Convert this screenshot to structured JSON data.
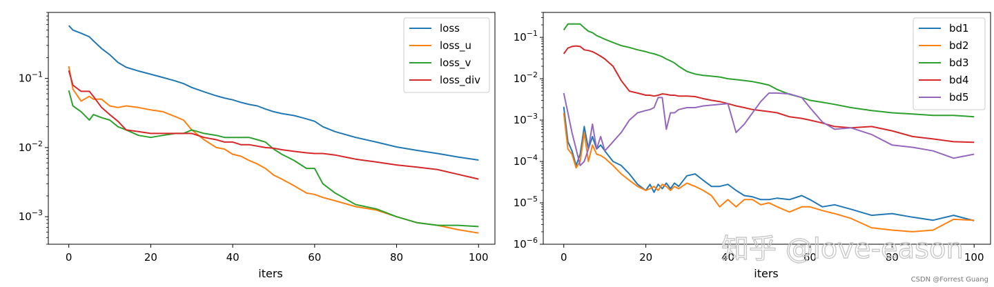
{
  "chart_data": [
    {
      "type": "line",
      "title": "",
      "xlabel": "iters",
      "ylabel": "",
      "yscale": "log",
      "xlim": [
        -5,
        104
      ],
      "ylim": [
        0.0004,
        0.9
      ],
      "x_ticks": [
        0,
        20,
        40,
        60,
        80,
        100
      ],
      "x_tick_labels": [
        "0",
        "20",
        "40",
        "60",
        "80",
        "100"
      ],
      "y_ticks": [
        0.001,
        0.01,
        0.1
      ],
      "y_tick_labels": [
        {
          "base": "10",
          "exp": "−3"
        },
        {
          "base": "10",
          "exp": "−2"
        },
        {
          "base": "10",
          "exp": "−1"
        }
      ],
      "legend_position": "top-right",
      "x": [
        0,
        1,
        3,
        5,
        6,
        8,
        10,
        12,
        14,
        17,
        20,
        23,
        26,
        28,
        30,
        33,
        36,
        38,
        40,
        42,
        44,
        46,
        48,
        50,
        52,
        55,
        58,
        60,
        62,
        65,
        70,
        75,
        80,
        85,
        90,
        95,
        100
      ],
      "series": [
        {
          "name": "loss",
          "color": "#1f77b4",
          "values": [
            0.58,
            0.5,
            0.45,
            0.4,
            0.35,
            0.27,
            0.22,
            0.17,
            0.145,
            0.128,
            0.115,
            0.103,
            0.092,
            0.084,
            0.074,
            0.064,
            0.056,
            0.052,
            0.049,
            0.045,
            0.042,
            0.04,
            0.036,
            0.033,
            0.031,
            0.029,
            0.026,
            0.024,
            0.02,
            0.017,
            0.014,
            0.012,
            0.0102,
            0.0091,
            0.0082,
            0.0073,
            0.0066
          ]
        },
        {
          "name": "loss_u",
          "color": "#ff7f0e",
          "values": [
            0.15,
            0.07,
            0.047,
            0.055,
            0.05,
            0.05,
            0.04,
            0.038,
            0.04,
            0.038,
            0.035,
            0.033,
            0.028,
            0.025,
            0.018,
            0.013,
            0.01,
            0.0095,
            0.008,
            0.0075,
            0.0065,
            0.0058,
            0.005,
            0.004,
            0.0035,
            0.0028,
            0.0022,
            0.0021,
            0.0019,
            0.0017,
            0.0014,
            0.00125,
            0.001,
            0.00082,
            0.00075,
            0.00065,
            0.00058
          ]
        },
        {
          "name": "loss_v",
          "color": "#2ca02c",
          "values": [
            0.067,
            0.04,
            0.033,
            0.025,
            0.03,
            0.027,
            0.025,
            0.02,
            0.018,
            0.015,
            0.014,
            0.015,
            0.016,
            0.016,
            0.018,
            0.016,
            0.015,
            0.014,
            0.014,
            0.014,
            0.014,
            0.013,
            0.012,
            0.0095,
            0.008,
            0.0065,
            0.005,
            0.005,
            0.003,
            0.0022,
            0.0015,
            0.0013,
            0.001,
            0.00082,
            0.00075,
            0.00075,
            0.00072
          ]
        },
        {
          "name": "loss_div",
          "color": "#d62728",
          "values": [
            0.13,
            0.08,
            0.065,
            0.065,
            0.055,
            0.038,
            0.03,
            0.024,
            0.018,
            0.017,
            0.016,
            0.016,
            0.016,
            0.016,
            0.016,
            0.014,
            0.013,
            0.012,
            0.012,
            0.011,
            0.011,
            0.0105,
            0.01,
            0.0098,
            0.0093,
            0.0088,
            0.0084,
            0.0082,
            0.0082,
            0.0078,
            0.0068,
            0.0062,
            0.0056,
            0.0052,
            0.0048,
            0.0041,
            0.0035
          ]
        }
      ]
    },
    {
      "type": "line",
      "title": "",
      "xlabel": "iters",
      "ylabel": "",
      "yscale": "log",
      "xlim": [
        -5,
        104
      ],
      "ylim": [
        1e-06,
        0.4
      ],
      "x_ticks": [
        0,
        20,
        40,
        60,
        80,
        100
      ],
      "x_tick_labels": [
        "0",
        "20",
        "40",
        "60",
        "80",
        "100"
      ],
      "y_ticks": [
        1e-06,
        1e-05,
        0.0001,
        0.001,
        0.01,
        0.1
      ],
      "y_tick_labels": [
        {
          "base": "10",
          "exp": "−6"
        },
        {
          "base": "10",
          "exp": "−5"
        },
        {
          "base": "10",
          "exp": "−4"
        },
        {
          "base": "10",
          "exp": "−3"
        },
        {
          "base": "10",
          "exp": "−2"
        },
        {
          "base": "10",
          "exp": "−1"
        }
      ],
      "legend_position": "top-right",
      "x": [
        0,
        1,
        2,
        3,
        4,
        5,
        6,
        7,
        8,
        9,
        10,
        12,
        14,
        16,
        18,
        20,
        21,
        22,
        23,
        24,
        25,
        26,
        27,
        28,
        30,
        32,
        34,
        36,
        38,
        40,
        42,
        44,
        46,
        48,
        50,
        52,
        55,
        58,
        60,
        63,
        66,
        70,
        75,
        80,
        85,
        90,
        95,
        100
      ],
      "series": [
        {
          "name": "bd1",
          "color": "#1f77b4",
          "values": [
            0.0021,
            0.0003,
            0.00018,
            8e-05,
            0.00015,
            0.0007,
            0.0002,
            0.0004,
            0.0002,
            0.00025,
            0.00018,
            0.0001,
            8e-05,
            5e-05,
            2.8e-05,
            2e-05,
            2.8e-05,
            1.8e-05,
            2.8e-05,
            2.2e-05,
            3e-05,
            2.2e-05,
            3e-05,
            2.5e-05,
            4.5e-05,
            5e-05,
            3.5e-05,
            2.5e-05,
            2.5e-05,
            2.8e-05,
            2e-05,
            1.5e-05,
            1.4e-05,
            1.2e-05,
            1.2e-05,
            1.3e-05,
            1.2e-05,
            1.5e-05,
            1.2e-05,
            8e-06,
            9e-06,
            7e-06,
            5e-06,
            5.5e-06,
            4.5e-06,
            3.8e-06,
            5e-06,
            3.7e-06
          ]
        },
        {
          "name": "bd2",
          "color": "#ff7f0e",
          "values": [
            0.0015,
            0.0002,
            0.00015,
            7e-05,
            0.0001,
            0.0005,
            0.0001,
            0.00025,
            0.00015,
            0.00014,
            0.00012,
            8e-05,
            5e-05,
            3.5e-05,
            2.5e-05,
            2e-05,
            2.2e-05,
            2.5e-05,
            2e-05,
            2.8e-05,
            2.5e-05,
            2e-05,
            2.5e-05,
            2.2e-05,
            3e-05,
            2.5e-05,
            2e-05,
            1.5e-05,
            8e-06,
            1.2e-05,
            8e-06,
            1.2e-05,
            1.2e-05,
            9e-06,
            1e-05,
            8e-06,
            6e-06,
            8e-06,
            8e-06,
            6.5e-06,
            5.5e-06,
            4.2e-06,
            2.5e-06,
            2.2e-06,
            2e-06,
            2.2e-06,
            4e-06,
            3.8e-06
          ]
        },
        {
          "name": "bd3",
          "color": "#2ca02c",
          "values": [
            0.15,
            0.21,
            0.21,
            0.21,
            0.21,
            0.17,
            0.14,
            0.13,
            0.11,
            0.1,
            0.09,
            0.075,
            0.063,
            0.057,
            0.05,
            0.045,
            0.042,
            0.04,
            0.037,
            0.034,
            0.03,
            0.027,
            0.024,
            0.02,
            0.015,
            0.013,
            0.012,
            0.0115,
            0.011,
            0.01,
            0.0095,
            0.009,
            0.0085,
            0.0078,
            0.007,
            0.0055,
            0.0042,
            0.0035,
            0.003,
            0.0027,
            0.0024,
            0.002,
            0.0017,
            0.0015,
            0.0014,
            0.0013,
            0.0013,
            0.0012
          ]
        },
        {
          "name": "bd4",
          "color": "#d62728",
          "values": [
            0.04,
            0.055,
            0.06,
            0.062,
            0.06,
            0.05,
            0.048,
            0.045,
            0.04,
            0.035,
            0.03,
            0.02,
            0.009,
            0.005,
            0.0045,
            0.004,
            0.004,
            0.0038,
            0.004,
            0.0043,
            0.0042,
            0.004,
            0.004,
            0.0038,
            0.0038,
            0.0037,
            0.0033,
            0.003,
            0.0028,
            0.0025,
            0.0022,
            0.002,
            0.0018,
            0.0017,
            0.0016,
            0.0015,
            0.0012,
            0.0011,
            0.001,
            0.00085,
            0.0007,
            0.00065,
            0.0007,
            0.00055,
            0.0004,
            0.00035,
            0.0003,
            0.00029
          ]
        },
        {
          "name": "bd5",
          "color": "#9467bd",
          "values": [
            0.0045,
            0.0015,
            0.0005,
            0.0002,
            8e-05,
            0.0001,
            0.0002,
            0.0008,
            0.0002,
            0.0004,
            0.00018,
            0.0003,
            0.0005,
            0.001,
            0.0015,
            0.0017,
            0.0018,
            0.002,
            0.0035,
            0.0035,
            0.0006,
            0.0015,
            0.0015,
            0.0018,
            0.002,
            0.002,
            0.0022,
            0.0023,
            0.0024,
            0.0025,
            0.0005,
            0.0008,
            0.0015,
            0.0028,
            0.0045,
            0.0045,
            0.0043,
            0.0035,
            0.002,
            0.0009,
            0.0006,
            0.00065,
            0.00045,
            0.00025,
            0.00022,
            0.00018,
            0.00012,
            0.00015
          ]
        }
      ]
    }
  ],
  "watermark": "知乎 @love-eason",
  "credit": "CSDN @Forrest Guang"
}
